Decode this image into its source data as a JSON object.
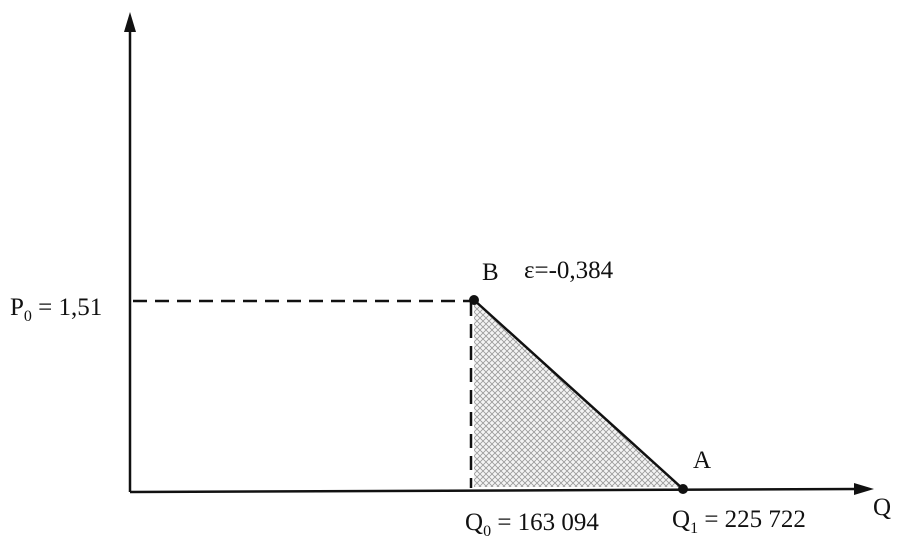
{
  "p0_label": {
    "symbol": "P",
    "sub": "0",
    "rest": " = 1,51"
  },
  "q0_label": {
    "symbol": "Q",
    "sub": "0",
    "rest": " = 163 094"
  },
  "q1_label": {
    "symbol": "Q",
    "sub": "1",
    "rest": " = 225 722"
  },
  "x_axis_label": "Q",
  "point_b": {
    "name": "B",
    "elasticity": "ε=-0,384"
  },
  "point_a": {
    "name": "A"
  }
}
